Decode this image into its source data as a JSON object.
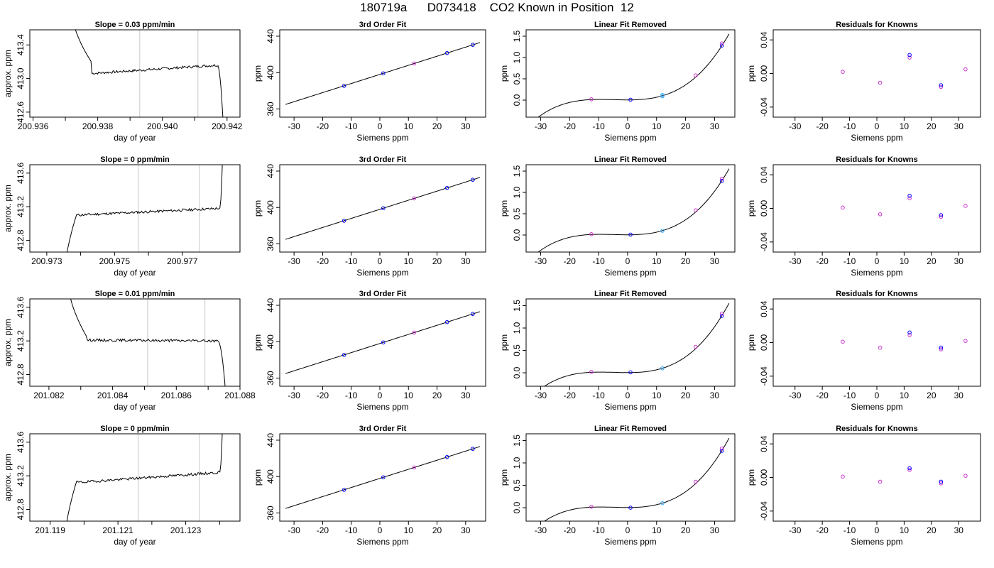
{
  "title": "180719a      D073418    CO2 Known in Position  12",
  "colors": {
    "axis": "#000000",
    "line": "#000000",
    "vline": "#c8c8c8",
    "blue": "#0000ff",
    "purple": "#cc33cc",
    "cyan": "#33aaff"
  },
  "chart_data": [
    {
      "type": "line",
      "title": "Slope =  0.03  ppm/min",
      "xlabel": "day of year",
      "ylabel": "approx. ppm",
      "xticks": [
        "200.936",
        "200.938",
        "200.940",
        "200.942"
      ],
      "xlim": [
        200.9359,
        200.9424
      ],
      "x_minor_ticks": [
        200.937,
        200.939,
        200.941
      ],
      "yticks": [
        "412.6",
        "413.0",
        "413.4"
      ],
      "ylim": [
        412.54,
        413.58
      ],
      "shape": {
        "rise_start": 200.9372,
        "rise_end": 200.9372,
        "plateau_start": 200.9378,
        "plateau_end": 200.9417,
        "fall_end": 200.9419,
        "start_level": 413.8,
        "level_start": 413.06,
        "level_end": 413.16,
        "end_level": 412.3,
        "bump_level": 413.2
      },
      "vlines": [
        200.9393,
        200.9411
      ]
    },
    {
      "type": "line",
      "title": "3rd Order Fit",
      "xlabel": "Siemens ppm",
      "ylabel": "ppm",
      "xticks": [
        "-30",
        "-20",
        "-10",
        "0",
        "10",
        "20",
        "30"
      ],
      "xlim": [
        -35,
        37
      ],
      "yticks": [
        "360",
        "400",
        "440"
      ],
      "ylim": [
        351,
        447
      ],
      "curve": {
        "coef": [
          397.97,
          1.0,
          0,
          0
        ],
        "xrange": [
          -33,
          35
        ]
      },
      "points": [
        {
          "x": -12.5,
          "y": 385.4,
          "color": "blue"
        },
        {
          "x": 1.2,
          "y": 399.2,
          "color": "blue"
        },
        {
          "x": 12.0,
          "y": 410.0,
          "color": "purple"
        },
        {
          "x": 23.5,
          "y": 421.5,
          "color": "blue"
        },
        {
          "x": 32.5,
          "y": 430.5,
          "color": "blue"
        }
      ]
    },
    {
      "type": "line",
      "title": "Linear Fit Removed",
      "xlabel": "Siemens ppm",
      "ylabel": "ppm",
      "xticks": [
        "-30",
        "-20",
        "-10",
        "0",
        "10",
        "20",
        "30"
      ],
      "xlim": [
        -35,
        37
      ],
      "yticks": [
        "0.0",
        "0.5",
        "1.0",
        "1.5"
      ],
      "ylim": [
        -0.4,
        1.65
      ],
      "curve": {
        "coef": [
          0.005,
          0,
          0.000365,
          2.57e-05
        ],
        "xrange": [
          -33,
          35
        ]
      },
      "points": [
        {
          "x": -12.5,
          "y": 0.02,
          "color": "purple"
        },
        {
          "x": 1.0,
          "y": 0.01,
          "color": "blue"
        },
        {
          "x": 12.0,
          "y": 0.09,
          "color": "cyan"
        },
        {
          "x": 12.0,
          "y": 0.12,
          "color": "cyan"
        },
        {
          "x": 23.5,
          "y": 0.58,
          "color": "purple"
        },
        {
          "x": 32.5,
          "y": 1.28,
          "color": "blue"
        },
        {
          "x": 32.5,
          "y": 1.33,
          "color": "purple"
        }
      ]
    },
    {
      "type": "scatter",
      "title": "Residuals for Knowns",
      "xlabel": "Siemens ppm",
      "ylabel": "ppm",
      "xticks": [
        "-30",
        "-20",
        "-10",
        "0",
        "10",
        "20",
        "30"
      ],
      "xlim": [
        -38,
        38
      ],
      "yticks": [
        "-0.04",
        "0.00",
        "0.04"
      ],
      "ylim": [
        -0.052,
        0.052
      ],
      "points": [
        {
          "x": -12.5,
          "y": 0.002,
          "color": "purple"
        },
        {
          "x": 1.2,
          "y": -0.011,
          "color": "purple"
        },
        {
          "x": 12.0,
          "y": 0.019,
          "color": "purple"
        },
        {
          "x": 12.0,
          "y": 0.022,
          "color": "blue"
        },
        {
          "x": 23.5,
          "y": -0.016,
          "color": "purple"
        },
        {
          "x": 23.5,
          "y": -0.014,
          "color": "blue"
        },
        {
          "x": 32.5,
          "y": 0.005,
          "color": "purple"
        }
      ]
    },
    {
      "type": "line",
      "title": "Slope =  0  ppm/min",
      "xlabel": "day of year",
      "ylabel": "approx. ppm",
      "xticks": [
        "200.973",
        "200.975",
        "200.977"
      ],
      "xlim": [
        200.9725,
        200.9787
      ],
      "x_minor_ticks": [
        200.974,
        200.976
      ],
      "yticks": [
        "412.8",
        "413.2",
        "413.6"
      ],
      "ylim": [
        412.66,
        413.7
      ],
      "shape": {
        "rise_start": 200.9735,
        "rise_end": 200.9739,
        "plateau_start": 200.9739,
        "plateau_end": 200.9781,
        "fall_end": 200.9782,
        "start_level": 412.3,
        "level_start": 413.1,
        "level_end": 413.18,
        "end_level": 414.0,
        "bump_level": 413.13
      },
      "vlines": [
        200.9757,
        200.9775
      ]
    },
    {
      "type": "line",
      "title": "3rd Order Fit",
      "xlabel": "Siemens ppm",
      "ylabel": "ppm",
      "xticks": [
        "-30",
        "-20",
        "-10",
        "0",
        "10",
        "20",
        "30"
      ],
      "xlim": [
        -35,
        37
      ],
      "yticks": [
        "360",
        "400",
        "440"
      ],
      "ylim": [
        351,
        447
      ],
      "curve": {
        "coef": [
          397.97,
          1.0,
          0,
          0
        ],
        "xrange": [
          -33,
          35
        ]
      },
      "points": [
        {
          "x": -12.5,
          "y": 385.4,
          "color": "blue"
        },
        {
          "x": 1.2,
          "y": 399.2,
          "color": "blue"
        },
        {
          "x": 12.0,
          "y": 410.0,
          "color": "purple"
        },
        {
          "x": 23.5,
          "y": 421.5,
          "color": "blue"
        },
        {
          "x": 32.5,
          "y": 430.5,
          "color": "blue"
        }
      ]
    },
    {
      "type": "line",
      "title": "Linear Fit Removed",
      "xlabel": "Siemens ppm",
      "ylabel": "ppm",
      "xticks": [
        "-30",
        "-20",
        "-10",
        "0",
        "10",
        "20",
        "30"
      ],
      "xlim": [
        -35,
        37
      ],
      "yticks": [
        "0.0",
        "0.5",
        "1.0",
        "1.5"
      ],
      "ylim": [
        -0.4,
        1.65
      ],
      "curve": {
        "coef": [
          0.005,
          0,
          0.000365,
          2.57e-05
        ],
        "xrange": [
          -33,
          35
        ]
      },
      "points": [
        {
          "x": -12.5,
          "y": 0.02,
          "color": "purple"
        },
        {
          "x": 1.0,
          "y": 0.01,
          "color": "blue"
        },
        {
          "x": 12.0,
          "y": 0.1,
          "color": "cyan"
        },
        {
          "x": 23.5,
          "y": 0.58,
          "color": "purple"
        },
        {
          "x": 32.5,
          "y": 1.27,
          "color": "blue"
        },
        {
          "x": 32.5,
          "y": 1.32,
          "color": "purple"
        }
      ]
    },
    {
      "type": "scatter",
      "title": "Residuals for Knowns",
      "xlabel": "Siemens ppm",
      "ylabel": "ppm",
      "xticks": [
        "-30",
        "-20",
        "-10",
        "0",
        "10",
        "20",
        "30"
      ],
      "xlim": [
        -38,
        38
      ],
      "yticks": [
        "-0.04",
        "0.00",
        "0.04"
      ],
      "ylim": [
        -0.052,
        0.052
      ],
      "points": [
        {
          "x": -12.5,
          "y": 0.001,
          "color": "purple"
        },
        {
          "x": 1.2,
          "y": -0.007,
          "color": "purple"
        },
        {
          "x": 12.0,
          "y": 0.012,
          "color": "purple"
        },
        {
          "x": 12.0,
          "y": 0.015,
          "color": "blue"
        },
        {
          "x": 23.5,
          "y": -0.01,
          "color": "purple"
        },
        {
          "x": 23.5,
          "y": -0.008,
          "color": "blue"
        },
        {
          "x": 32.5,
          "y": 0.003,
          "color": "purple"
        }
      ]
    },
    {
      "type": "line",
      "title": "Slope =  0.01  ppm/min",
      "xlabel": "day of year",
      "ylabel": "approx. ppm",
      "xticks": [
        "201.082",
        "201.084",
        "201.086",
        "201.088"
      ],
      "xlim": [
        201.0814,
        201.088
      ],
      "x_minor_ticks": [
        201.083,
        201.085,
        201.087
      ],
      "yticks": [
        "412.8",
        "413.2",
        "413.6"
      ],
      "ylim": [
        412.66,
        413.7
      ],
      "shape": {
        "rise_start": 201.0826,
        "rise_end": 201.0826,
        "plateau_start": 201.0832,
        "plateau_end": 201.0873,
        "fall_end": 201.0876,
        "start_level": 413.9,
        "level_start": 413.21,
        "level_end": 413.2,
        "end_level": 412.3,
        "bump_level": 413.24
      },
      "vlines": [
        201.0851,
        201.0869
      ]
    },
    {
      "type": "line",
      "title": "3rd Order Fit",
      "xlabel": "Siemens ppm",
      "ylabel": "ppm",
      "xticks": [
        "-30",
        "-20",
        "-10",
        "0",
        "10",
        "20",
        "30"
      ],
      "xlim": [
        -35,
        37
      ],
      "yticks": [
        "360",
        "400",
        "440"
      ],
      "ylim": [
        351,
        447
      ],
      "curve": {
        "coef": [
          397.97,
          1.0,
          0,
          0
        ],
        "xrange": [
          -33,
          35
        ]
      },
      "points": [
        {
          "x": -12.5,
          "y": 385.4,
          "color": "blue"
        },
        {
          "x": 1.2,
          "y": 399.2,
          "color": "blue"
        },
        {
          "x": 12.0,
          "y": 410.0,
          "color": "purple"
        },
        {
          "x": 23.5,
          "y": 421.5,
          "color": "blue"
        },
        {
          "x": 32.5,
          "y": 430.5,
          "color": "blue"
        }
      ]
    },
    {
      "type": "line",
      "title": "Linear Fit Removed",
      "xlabel": "Siemens ppm",
      "ylabel": "ppm",
      "xticks": [
        "-30",
        "-20",
        "-10",
        "0",
        "10",
        "20",
        "30"
      ],
      "xlim": [
        -35,
        37
      ],
      "yticks": [
        "0.0",
        "0.5",
        "1.0",
        "1.5"
      ],
      "ylim": [
        -0.3,
        1.65
      ],
      "curve": {
        "coef": [
          0.005,
          0,
          0.000365,
          2.57e-05
        ],
        "xrange": [
          -33,
          35
        ]
      },
      "points": [
        {
          "x": -12.5,
          "y": 0.02,
          "color": "purple"
        },
        {
          "x": 1.0,
          "y": 0.01,
          "color": "blue"
        },
        {
          "x": 12.0,
          "y": 0.1,
          "color": "cyan"
        },
        {
          "x": 23.5,
          "y": 0.58,
          "color": "purple"
        },
        {
          "x": 32.5,
          "y": 1.27,
          "color": "blue"
        },
        {
          "x": 32.5,
          "y": 1.32,
          "color": "purple"
        }
      ]
    },
    {
      "type": "scatter",
      "title": "Residuals for Knowns",
      "xlabel": "Siemens ppm",
      "ylabel": "ppm",
      "xticks": [
        "-30",
        "-20",
        "-10",
        "0",
        "10",
        "20",
        "30"
      ],
      "xlim": [
        -38,
        38
      ],
      "yticks": [
        "-0.04",
        "0.00",
        "0.04"
      ],
      "ylim": [
        -0.052,
        0.052
      ],
      "points": [
        {
          "x": -12.5,
          "y": 0.001,
          "color": "purple"
        },
        {
          "x": 1.2,
          "y": -0.006,
          "color": "purple"
        },
        {
          "x": 12.0,
          "y": 0.009,
          "color": "purple"
        },
        {
          "x": 12.0,
          "y": 0.012,
          "color": "blue"
        },
        {
          "x": 23.5,
          "y": -0.008,
          "color": "purple"
        },
        {
          "x": 23.5,
          "y": -0.006,
          "color": "blue"
        },
        {
          "x": 32.5,
          "y": 0.002,
          "color": "purple"
        }
      ]
    },
    {
      "type": "line",
      "title": "Slope =  0  ppm/min",
      "xlabel": "day of year",
      "ylabel": "approx. ppm",
      "xticks": [
        "201.119",
        "201.121",
        "201.123"
      ],
      "xlim": [
        201.1184,
        201.1246
      ],
      "x_minor_ticks": [
        201.12,
        201.122,
        201.124
      ],
      "yticks": [
        "412.8",
        "413.2",
        "413.6"
      ],
      "ylim": [
        412.66,
        413.7
      ],
      "shape": {
        "rise_start": 201.1194,
        "rise_end": 201.1198,
        "plateau_start": 201.1198,
        "plateau_end": 201.124,
        "fall_end": 201.1241,
        "start_level": 412.3,
        "level_start": 413.12,
        "level_end": 413.24,
        "end_level": 414.0,
        "bump_level": 413.16
      },
      "vlines": [
        201.1216,
        201.1234
      ]
    },
    {
      "type": "line",
      "title": "3rd Order Fit",
      "xlabel": "Siemens ppm",
      "ylabel": "ppm",
      "xticks": [
        "-30",
        "-20",
        "-10",
        "0",
        "10",
        "20",
        "30"
      ],
      "xlim": [
        -35,
        37
      ],
      "yticks": [
        "360",
        "400",
        "440"
      ],
      "ylim": [
        351,
        447
      ],
      "curve": {
        "coef": [
          397.97,
          1.0,
          0,
          0
        ],
        "xrange": [
          -33,
          35
        ]
      },
      "points": [
        {
          "x": -12.5,
          "y": 385.4,
          "color": "blue"
        },
        {
          "x": 1.2,
          "y": 399.2,
          "color": "blue"
        },
        {
          "x": 12.0,
          "y": 410.0,
          "color": "purple"
        },
        {
          "x": 23.5,
          "y": 421.5,
          "color": "blue"
        },
        {
          "x": 32.5,
          "y": 430.5,
          "color": "blue"
        }
      ]
    },
    {
      "type": "line",
      "title": "Linear Fit Removed",
      "xlabel": "Siemens ppm",
      "ylabel": "ppm",
      "xticks": [
        "-30",
        "-20",
        "-10",
        "0",
        "10",
        "20",
        "30"
      ],
      "xlim": [
        -35,
        37
      ],
      "yticks": [
        "0.0",
        "0.5",
        "1.0",
        "1.5"
      ],
      "ylim": [
        -0.3,
        1.65
      ],
      "curve": {
        "coef": [
          0.005,
          0,
          0.000365,
          2.57e-05
        ],
        "xrange": [
          -33,
          35
        ]
      },
      "points": [
        {
          "x": -12.5,
          "y": 0.02,
          "color": "purple"
        },
        {
          "x": 1.0,
          "y": 0.0,
          "color": "blue"
        },
        {
          "x": 12.0,
          "y": 0.1,
          "color": "cyan"
        },
        {
          "x": 23.5,
          "y": 0.58,
          "color": "purple"
        },
        {
          "x": 32.5,
          "y": 1.27,
          "color": "blue"
        },
        {
          "x": 32.5,
          "y": 1.32,
          "color": "purple"
        }
      ]
    },
    {
      "type": "scatter",
      "title": "Residuals for Knowns",
      "xlabel": "Siemens ppm",
      "ylabel": "ppm",
      "xticks": [
        "-30",
        "-20",
        "-10",
        "0",
        "10",
        "20",
        "30"
      ],
      "xlim": [
        -38,
        38
      ],
      "yticks": [
        "-0.04",
        "0.00",
        "0.04"
      ],
      "ylim": [
        -0.052,
        0.052
      ],
      "points": [
        {
          "x": -12.5,
          "y": 0.001,
          "color": "purple"
        },
        {
          "x": 1.2,
          "y": -0.005,
          "color": "purple"
        },
        {
          "x": 12.0,
          "y": 0.009,
          "color": "purple"
        },
        {
          "x": 12.0,
          "y": 0.011,
          "color": "blue"
        },
        {
          "x": 23.5,
          "y": -0.007,
          "color": "purple"
        },
        {
          "x": 23.5,
          "y": -0.005,
          "color": "blue"
        },
        {
          "x": 32.5,
          "y": 0.002,
          "color": "purple"
        }
      ]
    }
  ]
}
